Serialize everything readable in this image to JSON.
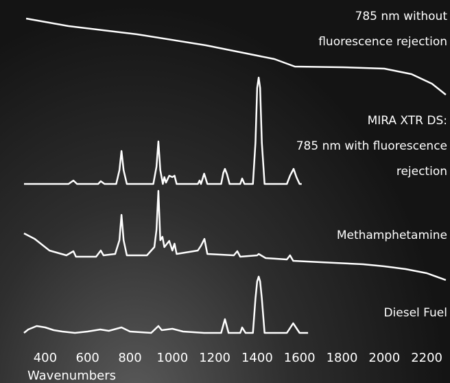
{
  "chart_data": {
    "type": "line",
    "x_label": "Wavenumbers",
    "xlim": [
      300,
      2300
    ],
    "xticks": [
      400,
      600,
      800,
      1000,
      1200,
      1400,
      1600,
      1800,
      2000,
      2200
    ],
    "series": [
      {
        "name": [
          "785 nm without",
          "fluorescence rejection"
        ],
        "color": "#ffffff",
        "x": [
          310,
          510,
          834,
          1158,
          1481,
          1578,
          1805,
          2000,
          2128,
          2225,
          2290
        ],
        "values": [
          113,
          102,
          90,
          74,
          54,
          43,
          42,
          40,
          32,
          18,
          2
        ]
      },
      {
        "name": [
          "MIRA XTR DS:",
          "785 nm with fluorescence",
          "rejection"
        ],
        "color": "#ffffff",
        "x": [
          300,
          510,
          533,
          550,
          650,
          662,
          680,
          735,
          750,
          760,
          770,
          785,
          910,
          925,
          934,
          943,
          955,
          962,
          970,
          985,
          1000,
          1010,
          1020,
          1120,
          1128,
          1135,
          1150,
          1165,
          1230,
          1240,
          1248,
          1258,
          1270,
          1320,
          1329,
          1340,
          1380,
          1392,
          1400,
          1407,
          1414,
          1422,
          1435,
          1540,
          1555,
          1572,
          1585,
          1600,
          1610
        ],
        "values": [
          0,
          0,
          5,
          0,
          0,
          4,
          0,
          0,
          20,
          48,
          20,
          0,
          0,
          25,
          62,
          20,
          0,
          10,
          2,
          12,
          10,
          12,
          0,
          0,
          5,
          0,
          15,
          0,
          0,
          16,
          22,
          14,
          0,
          0,
          8,
          0,
          0,
          60,
          140,
          155,
          140,
          60,
          0,
          0,
          12,
          22,
          10,
          0,
          0
        ]
      },
      {
        "name": [
          "Methamphetamine"
        ],
        "color": "#ffffff",
        "x": [
          300,
          350,
          420,
          500,
          533,
          545,
          640,
          662,
          675,
          730,
          750,
          760,
          770,
          785,
          880,
          915,
          925,
          934,
          943,
          953,
          962,
          985,
          1000,
          1010,
          1020,
          1120,
          1135,
          1151,
          1165,
          1290,
          1306,
          1320,
          1400,
          1407,
          1440,
          1540,
          1555,
          1570,
          1700,
          1900,
          2000,
          2100,
          2200,
          2290
        ],
        "values": [
          70,
          62,
          45,
          38,
          44,
          36,
          36,
          45,
          38,
          40,
          60,
          97,
          60,
          38,
          38,
          50,
          75,
          132,
          60,
          65,
          50,
          59,
          45,
          55,
          40,
          45,
          52,
          62,
          40,
          38,
          44,
          36,
          38,
          40,
          34,
          32,
          38,
          30,
          28,
          25,
          22,
          18,
          12,
          2
        ]
      },
      {
        "name": [
          "Diesel Fuel"
        ],
        "color": "#ffffff",
        "x": [
          300,
          320,
          360,
          400,
          440,
          480,
          540,
          600,
          660,
          700,
          760,
          800,
          900,
          934,
          950,
          1000,
          1050,
          1150,
          1230,
          1248,
          1265,
          1320,
          1329,
          1345,
          1380,
          1392,
          1400,
          1407,
          1414,
          1422,
          1435,
          1540,
          1570,
          1600,
          1640
        ],
        "values": [
          0,
          5,
          10,
          8,
          4,
          2,
          0,
          2,
          5,
          3,
          8,
          2,
          0,
          10,
          4,
          6,
          2,
          0,
          0,
          20,
          0,
          0,
          8,
          0,
          0,
          50,
          75,
          82,
          75,
          50,
          0,
          0,
          14,
          0,
          0
        ]
      }
    ]
  }
}
